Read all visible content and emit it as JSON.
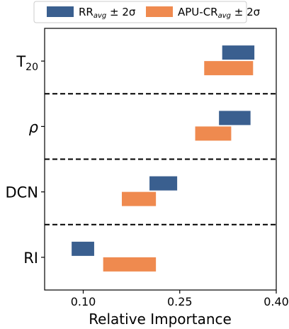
{
  "chart_data": {
    "type": "bar",
    "orientation": "horizontal-range",
    "title": "",
    "xlabel": "Relative Importance",
    "ylabel": "",
    "xlim": [
      0.04,
      0.4
    ],
    "xticks": [
      {
        "value": 0.1,
        "label": "0.10"
      },
      {
        "value": 0.25,
        "label": "0.25"
      },
      {
        "value": 0.4,
        "label": "0.40"
      }
    ],
    "categories": [
      {
        "key": "T20",
        "label_main": "T",
        "label_sub": "20",
        "italic": false
      },
      {
        "key": "rho",
        "label_main": "ρ",
        "label_sub": "",
        "italic": true
      },
      {
        "key": "DCN",
        "label_main": "DCN",
        "label_sub": "",
        "italic": false
      },
      {
        "key": "RI",
        "label_main": "RI",
        "label_sub": "",
        "italic": false
      }
    ],
    "series": [
      {
        "name": "RR_avg ± 2σ",
        "legend_main": "RR",
        "legend_sub": "avg",
        "legend_suffix": " ± 2σ",
        "color": "#3a5f8f",
        "ranges": [
          [
            0.316,
            0.366
          ],
          [
            0.311,
            0.36
          ],
          [
            0.203,
            0.246
          ],
          [
            0.082,
            0.117
          ]
        ]
      },
      {
        "name": "APU-CR_avg ± 2σ",
        "legend_main": "APU-CR",
        "legend_sub": "avg",
        "legend_suffix": " ± 2σ",
        "color": "#ef8a4f",
        "ranges": [
          [
            0.288,
            0.364
          ],
          [
            0.274,
            0.33
          ],
          [
            0.16,
            0.213
          ],
          [
            0.131,
            0.213
          ]
        ]
      }
    ],
    "separators": "dashed",
    "legend_position": "top-center",
    "grid": false
  }
}
